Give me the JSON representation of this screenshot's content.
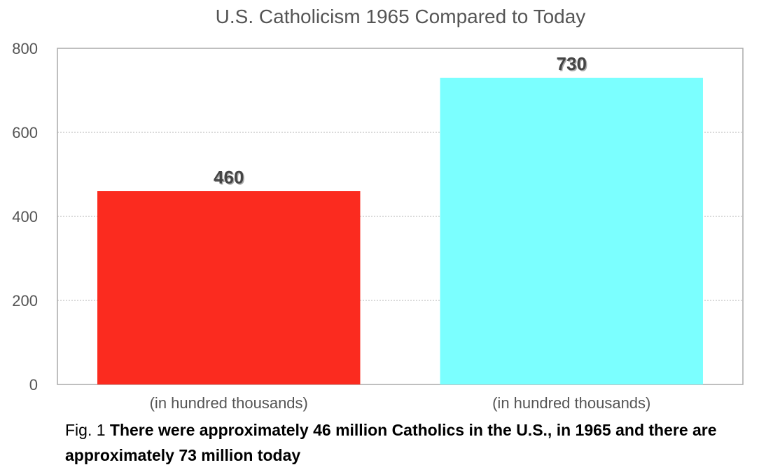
{
  "chart_data": {
    "type": "bar",
    "title": "U.S. Catholicism 1965 Compared to Today",
    "categories": [
      "(in hundred thousands)",
      "(in hundred thousands)"
    ],
    "values": [
      460,
      730
    ],
    "data_labels": [
      "460",
      "730"
    ],
    "bar_colors": [
      "#fb2b1f",
      "#7bffff"
    ],
    "ylim": [
      0,
      800
    ],
    "yticks": [
      0,
      200,
      400,
      600,
      800
    ],
    "ytick_labels": [
      "0",
      "200",
      "400",
      "600",
      "800"
    ],
    "grid": true,
    "legend": false
  },
  "caption": {
    "fig": "Fig. 1",
    "text": "There were approximately 46 million Catholics in the U.S., in 1965 and there are approximately 73 million today"
  }
}
